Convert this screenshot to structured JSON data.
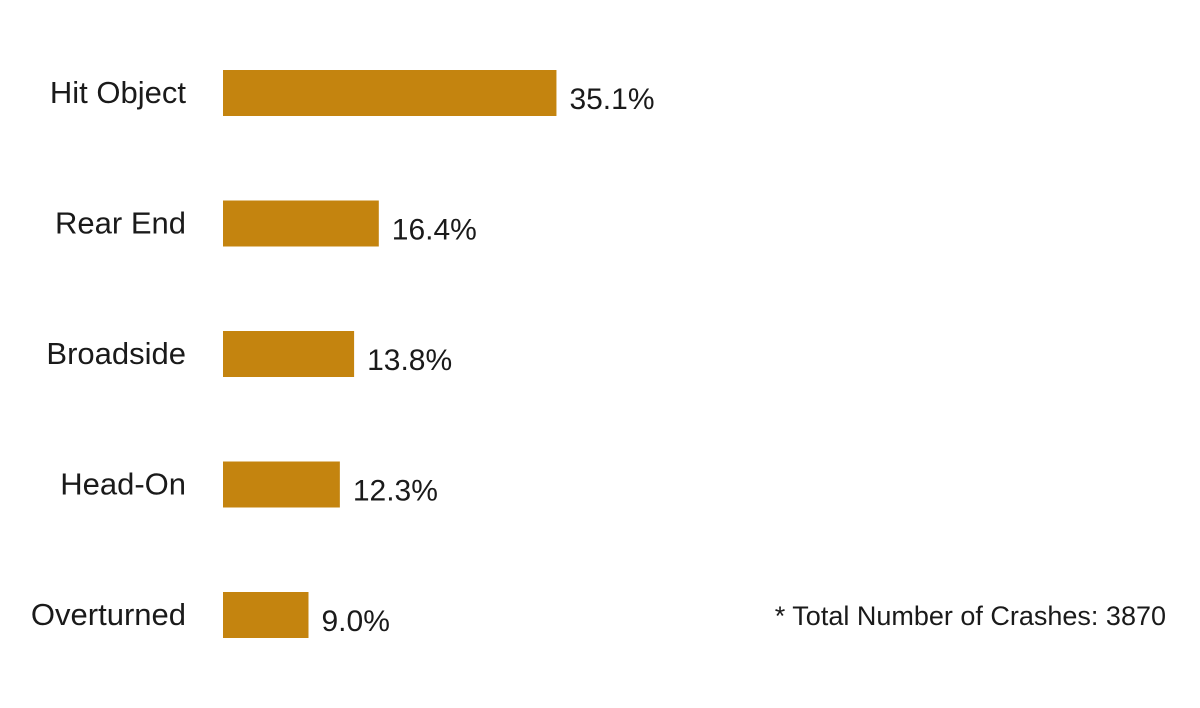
{
  "chart_data": {
    "type": "bar",
    "orientation": "horizontal",
    "categories": [
      "Hit Object",
      "Rear End",
      "Broadside",
      "Head-On",
      "Overturned"
    ],
    "values": [
      35.1,
      16.4,
      13.8,
      12.3,
      9.0
    ],
    "value_labels": [
      "35.1%",
      "16.4%",
      "13.8%",
      "12.3%",
      "9.0%"
    ],
    "unit": "%",
    "bar_color": "#C4840F",
    "xlim": [
      0,
      100
    ],
    "grid": false,
    "legend": "none",
    "axes_visible": false
  },
  "note": {
    "text": "* Total Number of Crashes: 3870"
  }
}
